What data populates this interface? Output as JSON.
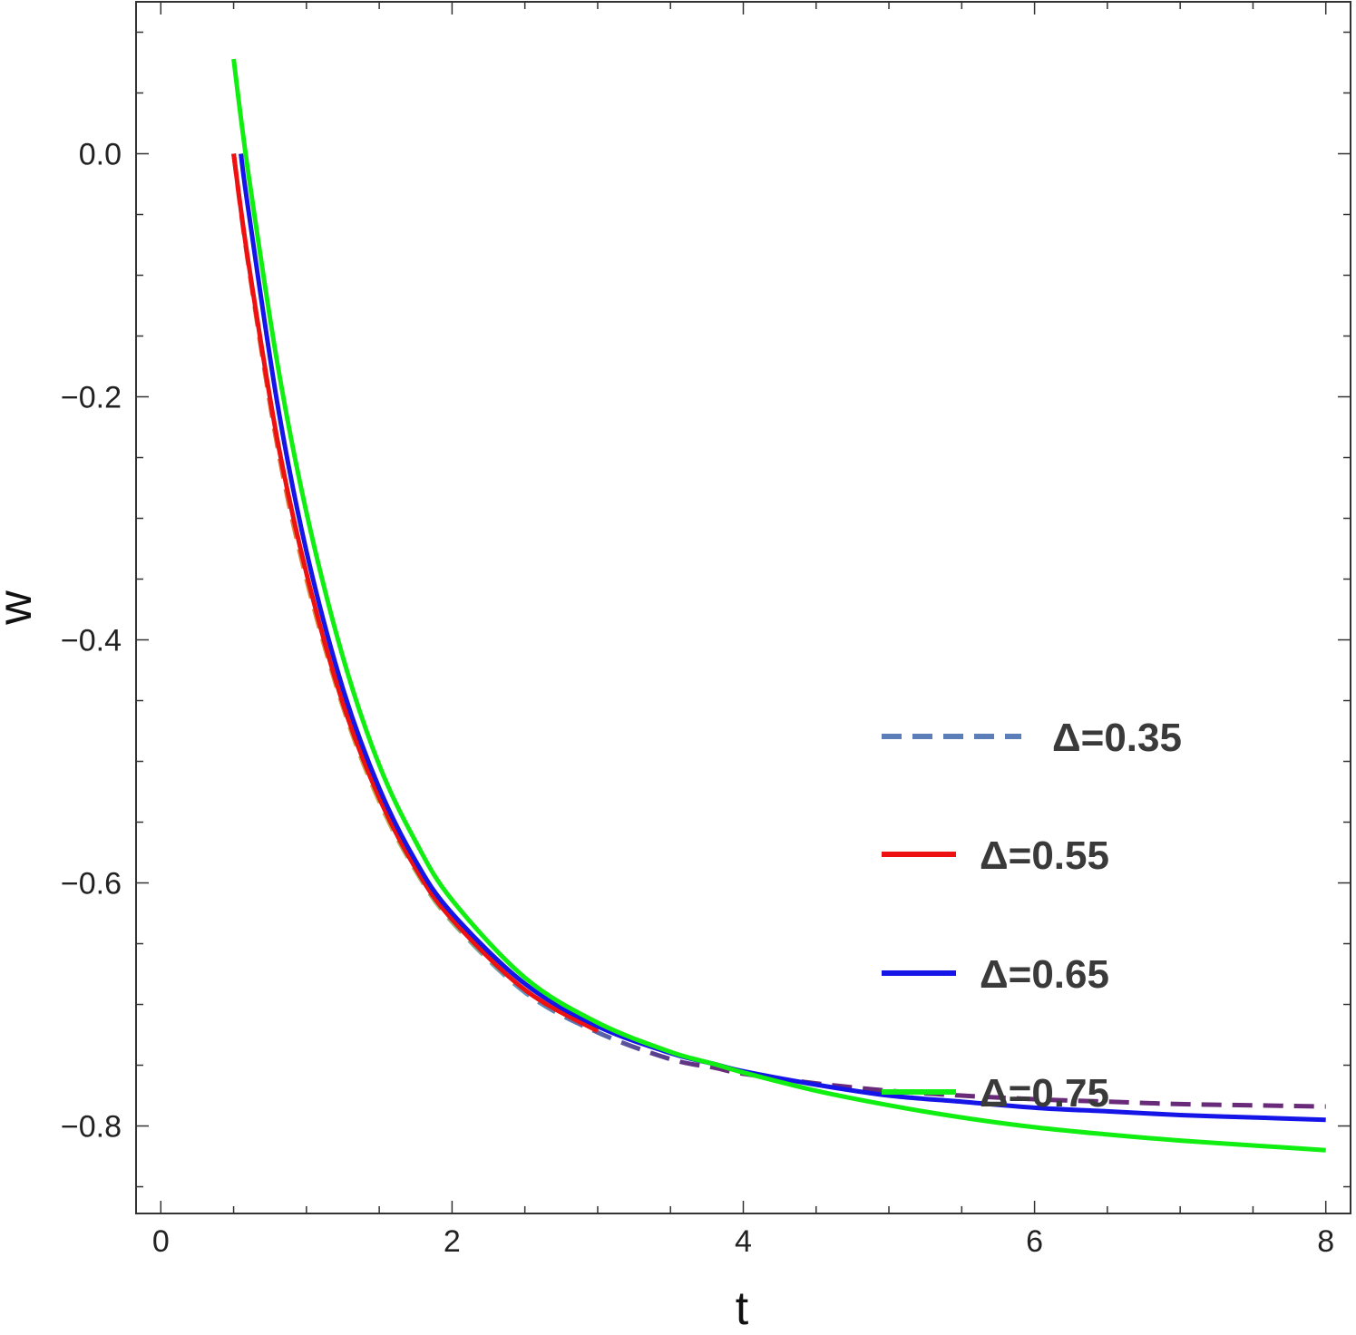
{
  "chart_data": {
    "type": "line",
    "xlabel": "t",
    "ylabel": "w",
    "xlim": [
      -0.17,
      8.17
    ],
    "ylim": [
      -0.872,
      0.125
    ],
    "xticks": [
      0,
      2,
      4,
      6,
      8
    ],
    "xtick_labels": [
      "0",
      "2",
      "4",
      "6",
      "8"
    ],
    "yticks": [
      0.0,
      -0.2,
      -0.4,
      -0.6,
      -0.8
    ],
    "ytick_labels": [
      "0.0",
      "−0.2",
      "−0.4",
      "−0.6",
      "−0.8"
    ],
    "x_minor_step": 0.5,
    "y_minor_step": 0.05,
    "grid": false,
    "legend_position": "bottom-right",
    "series": [
      {
        "name": "Δ=0.35",
        "color": "#5b7db8",
        "dashed": true,
        "gradient": [
          "#e34a2a",
          "#e08a3a",
          "#c8b050",
          "#8eb47a",
          "#5b9cc0",
          "#5a6fb0",
          "#5a3f8e",
          "#6a2a7a"
        ],
        "x": [
          0.5,
          0.6,
          0.8,
          1.0,
          1.25,
          1.5,
          1.75,
          2.0,
          2.5,
          3.0,
          3.5,
          3.8,
          4.0,
          4.5,
          5.0,
          5.5,
          6.0,
          6.5,
          7.0,
          7.5,
          8.0
        ],
        "y": [
          0.0,
          -0.09,
          -0.24,
          -0.35,
          -0.455,
          -0.533,
          -0.59,
          -0.632,
          -0.69,
          -0.723,
          -0.745,
          -0.752,
          -0.757,
          -0.765,
          -0.771,
          -0.775,
          -0.778,
          -0.78,
          -0.782,
          -0.783,
          -0.784
        ]
      },
      {
        "name": "Δ=0.55",
        "color": "#ee1111",
        "dashed": false,
        "x": [
          0.5,
          0.6,
          0.8,
          1.0,
          1.25,
          1.5,
          1.75,
          2.0,
          2.5,
          3.0
        ],
        "y": [
          0.0,
          -0.088,
          -0.235,
          -0.345,
          -0.452,
          -0.53,
          -0.588,
          -0.63,
          -0.688,
          -0.722
        ]
      },
      {
        "name": "Δ=0.65",
        "color": "#1515e8",
        "dashed": false,
        "x": [
          0.55,
          0.6,
          0.8,
          1.0,
          1.25,
          1.5,
          1.75,
          2.0,
          2.5,
          3.0,
          3.5,
          3.8,
          4.0,
          4.5,
          5.0,
          5.5,
          6.0,
          6.5,
          7.0,
          7.5,
          8.0
        ],
        "y": [
          0.0,
          -0.045,
          -0.205,
          -0.327,
          -0.44,
          -0.522,
          -0.582,
          -0.625,
          -0.683,
          -0.718,
          -0.74,
          -0.749,
          -0.755,
          -0.766,
          -0.775,
          -0.78,
          -0.785,
          -0.788,
          -0.791,
          -0.793,
          -0.795
        ]
      },
      {
        "name": "Δ=0.75",
        "color": "#11ee11",
        "dashed": false,
        "x": [
          0.5,
          0.6,
          0.8,
          1.0,
          1.25,
          1.5,
          1.75,
          2.0,
          2.5,
          3.0,
          3.5,
          3.8,
          4.0,
          4.5,
          5.0,
          5.5,
          6.0,
          6.5,
          7.0,
          7.5,
          8.0
        ],
        "y": [
          0.078,
          -0.015,
          -0.172,
          -0.295,
          -0.414,
          -0.503,
          -0.566,
          -0.614,
          -0.678,
          -0.715,
          -0.739,
          -0.749,
          -0.756,
          -0.771,
          -0.783,
          -0.793,
          -0.801,
          -0.807,
          -0.812,
          -0.816,
          -0.82
        ]
      }
    ]
  }
}
